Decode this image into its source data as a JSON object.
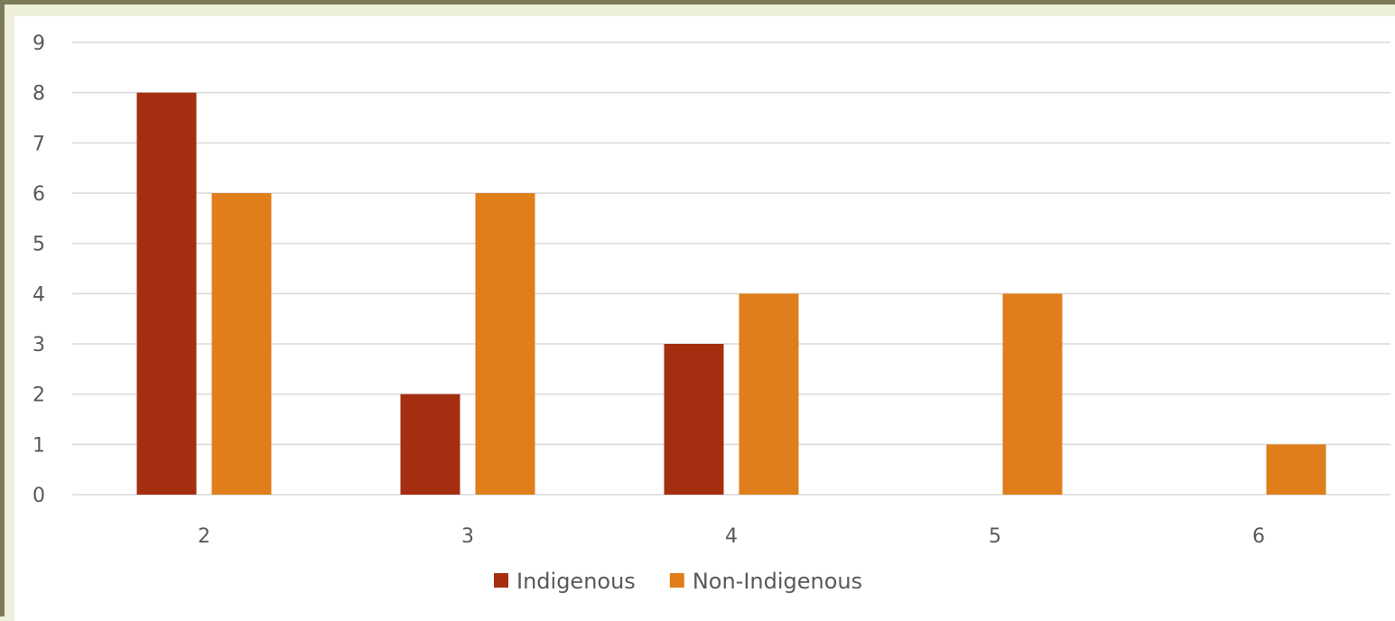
{
  "chart_data": {
    "type": "bar",
    "categories": [
      "2",
      "3",
      "4",
      "5",
      "6"
    ],
    "series": [
      {
        "name": "Indigenous",
        "color": "#a52e10",
        "values": [
          8,
          2,
          3,
          null,
          null
        ]
      },
      {
        "name": "Non-Indigenous",
        "color": "#df7e1a",
        "values": [
          6,
          6,
          4,
          4,
          1
        ]
      }
    ],
    "y_ticks": [
      "0",
      "1",
      "2",
      "3",
      "4",
      "5",
      "6",
      "7",
      "8",
      "9"
    ],
    "ylim": [
      0,
      9
    ],
    "grid": true,
    "legend_position": "bottom"
  }
}
